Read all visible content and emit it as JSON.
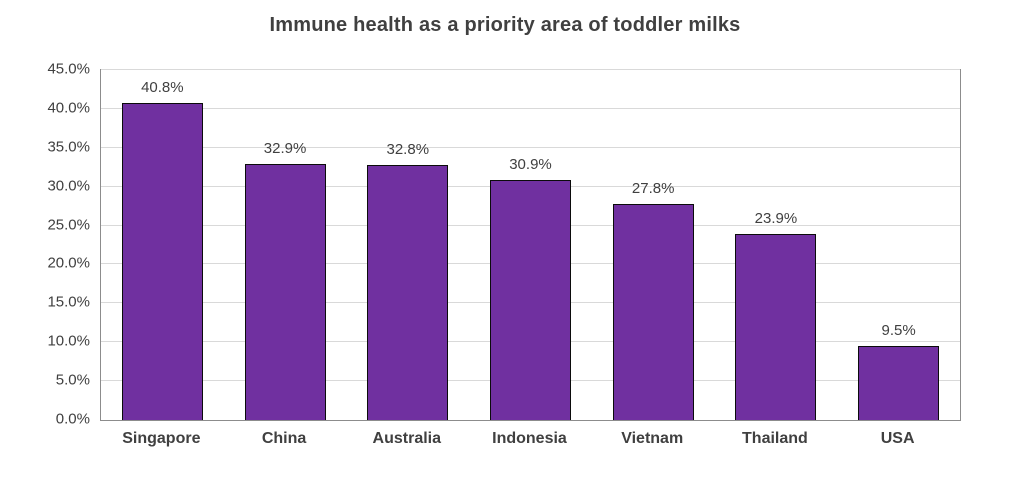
{
  "chart_data": {
    "type": "bar",
    "title": "Immune health as a priority area of toddler milks",
    "categories": [
      "Singapore",
      "China",
      "Australia",
      "Indonesia",
      "Vietnam",
      "Thailand",
      "USA"
    ],
    "values": [
      40.8,
      32.9,
      32.8,
      30.9,
      27.8,
      23.9,
      9.5
    ],
    "value_labels": [
      "40.8%",
      "32.9%",
      "32.8%",
      "30.9%",
      "27.8%",
      "23.9%",
      "9.5%"
    ],
    "xlabel": "",
    "ylabel": "",
    "ylim": [
      0,
      45
    ],
    "ytick_step": 5,
    "ytick_labels": [
      "0.0%",
      "5.0%",
      "10.0%",
      "15.0%",
      "20.0%",
      "25.0%",
      "30.0%",
      "35.0%",
      "40.0%",
      "45.0%"
    ],
    "grid": "horizontal",
    "legend": "none",
    "colors": {
      "bar_fill": "#7030a0",
      "bar_border": "#0b0b0b",
      "gridline": "#d9d9d9",
      "plot_border": "#8c8c8c",
      "text": "#404040"
    }
  }
}
